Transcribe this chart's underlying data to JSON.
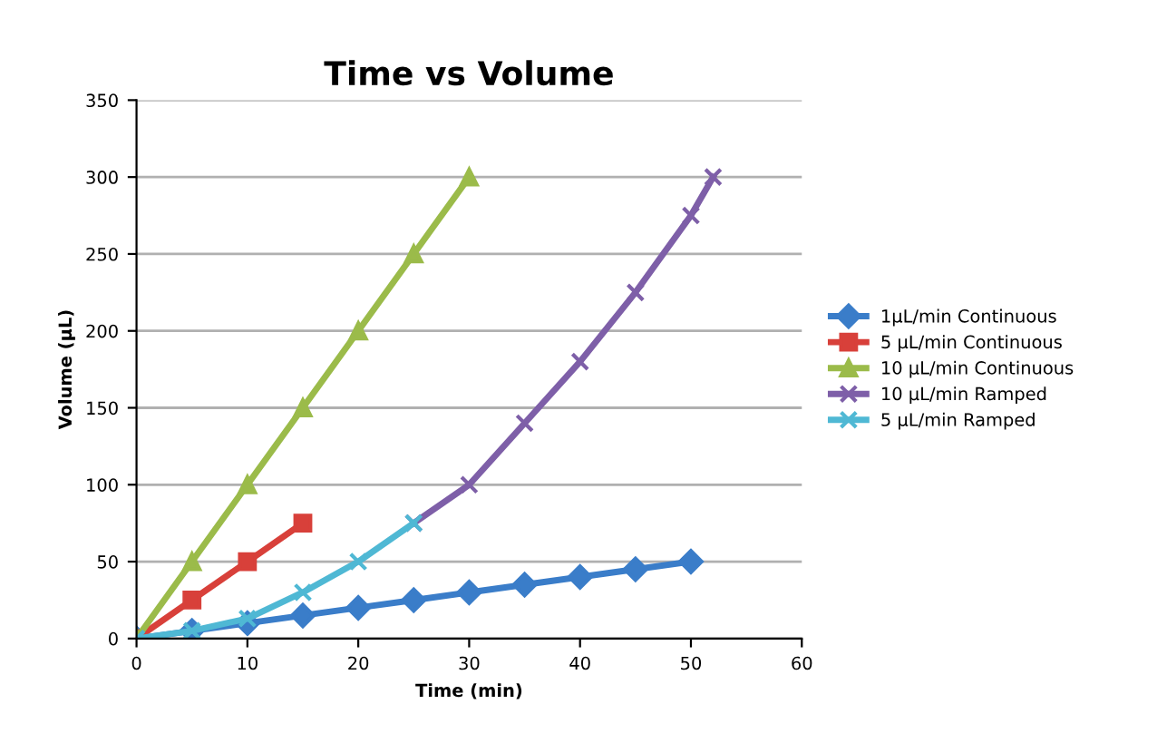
{
  "chart_data": {
    "type": "line",
    "title": "Time vs Volume",
    "xlabel": "Time (min)",
    "ylabel": "Volume (µL)",
    "xlim": [
      0,
      60
    ],
    "xticks": [
      0,
      10,
      20,
      30,
      40,
      50,
      60
    ],
    "ylim": [
      0,
      350
    ],
    "yticks": [
      0,
      50,
      100,
      150,
      200,
      250,
      300,
      350
    ],
    "grid": "y",
    "legend": "right",
    "line_style": "solid",
    "series": [
      {
        "name": "1µL/min Continuous",
        "color": "#3a7dc9",
        "marker": "diamond",
        "x": [
          0,
          5,
          10,
          15,
          20,
          25,
          30,
          35,
          40,
          45,
          50
        ],
        "values": [
          0,
          5,
          10,
          15,
          20,
          25,
          30,
          35,
          40,
          45,
          50
        ]
      },
      {
        "name": "5 µL/min Continuous",
        "color": "#d8403a",
        "marker": "square",
        "x": [
          0,
          5,
          10,
          15
        ],
        "values": [
          0,
          25,
          50,
          75
        ]
      },
      {
        "name": "10 µL/min Continuous",
        "color": "#9bbb4a",
        "marker": "triangle",
        "x": [
          0,
          5,
          10,
          15,
          20,
          25,
          30
        ],
        "values": [
          0,
          50,
          100,
          150,
          200,
          250,
          300
        ]
      },
      {
        "name": "10 µL/min Ramped",
        "color": "#7e5fa8",
        "marker": "cross",
        "x": [
          25,
          30,
          35,
          40,
          45,
          50,
          52
        ],
        "values": [
          75,
          100,
          140,
          180,
          225,
          275,
          300
        ]
      },
      {
        "name": "5 µL/min Ramped",
        "color": "#4fb8d4",
        "marker": "cross",
        "x": [
          0,
          5,
          10,
          15,
          20,
          25
        ],
        "values": [
          0,
          5,
          13,
          30,
          50,
          75
        ]
      }
    ]
  }
}
